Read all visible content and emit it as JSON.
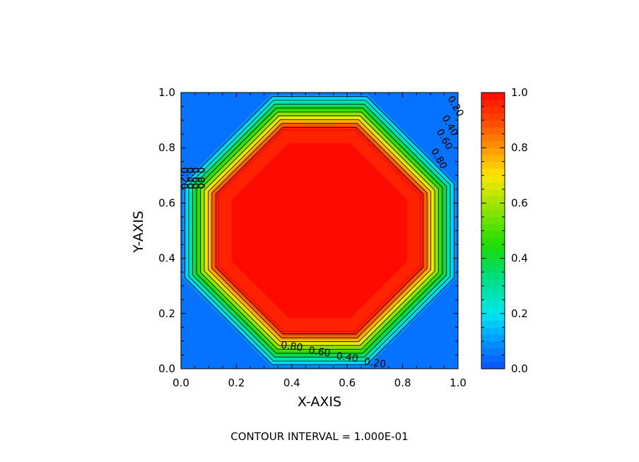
{
  "chart_data": {
    "type": "heatmap",
    "subtype": "filled-contour",
    "xlabel": "X-AXIS",
    "ylabel": "Y-AXIS",
    "xlim": [
      0.0,
      1.0
    ],
    "ylim": [
      0.0,
      1.0
    ],
    "x_ticks": [
      "0.0",
      "0.2",
      "0.4",
      "0.6",
      "0.8",
      "1.0"
    ],
    "y_ticks": [
      "0.0",
      "0.2",
      "0.4",
      "0.6",
      "0.8",
      "1.0"
    ],
    "x_tick_values": [
      0.0,
      0.2,
      0.4,
      0.6,
      0.8,
      1.0
    ],
    "y_tick_values": [
      0.0,
      0.2,
      0.4,
      0.6,
      0.8,
      1.0
    ],
    "contour_levels": [
      0.1,
      0.2,
      0.3,
      0.4,
      0.5,
      0.6,
      0.7,
      0.8,
      0.9
    ],
    "field": {
      "description_value_range": [
        0.0,
        1.0
      ],
      "plateau_value": 1.0,
      "plateau_region": {
        "x": [
          0.16,
          0.84
        ],
        "y": [
          0.16,
          0.84
        ]
      },
      "edge_value": 0.0,
      "transition_width": 0.1
    },
    "contour_labels": [
      {
        "text": "0.80",
        "x": 0.4,
        "y": 0.08
      },
      {
        "text": "0.60",
        "x": 0.5,
        "y": 0.06
      },
      {
        "text": "0.40",
        "x": 0.6,
        "y": 0.04
      },
      {
        "text": "0.20",
        "x": 0.7,
        "y": 0.02
      },
      {
        "text": "0.20",
        "x": 0.99,
        "y": 0.95
      },
      {
        "text": "0.40",
        "x": 0.97,
        "y": 0.88
      },
      {
        "text": "0.60",
        "x": 0.95,
        "y": 0.83
      },
      {
        "text": "0.80",
        "x": 0.93,
        "y": 0.76
      },
      {
        "text": "0.20",
        "x": 0.01,
        "y": 0.69
      },
      {
        "text": "0.40",
        "x": 0.03,
        "y": 0.69
      },
      {
        "text": "0.60",
        "x": 0.05,
        "y": 0.69
      },
      {
        "text": "0.80",
        "x": 0.07,
        "y": 0.69
      }
    ],
    "colorbar": {
      "min": 0.0,
      "max": 1.0,
      "ticks": [
        "0.0",
        "0.2",
        "0.4",
        "0.6",
        "0.8",
        "1.0"
      ],
      "tick_values": [
        0.0,
        0.2,
        0.4,
        0.6,
        0.8,
        1.0
      ],
      "colormap": "rainbow (blue-cyan-green-yellow-red)"
    },
    "footer_text": "CONTOUR INTERVAL = 1.000E-01"
  },
  "colors": {
    "background": "#ffffff",
    "low": "#0a64ff",
    "high": "#ff1400"
  }
}
